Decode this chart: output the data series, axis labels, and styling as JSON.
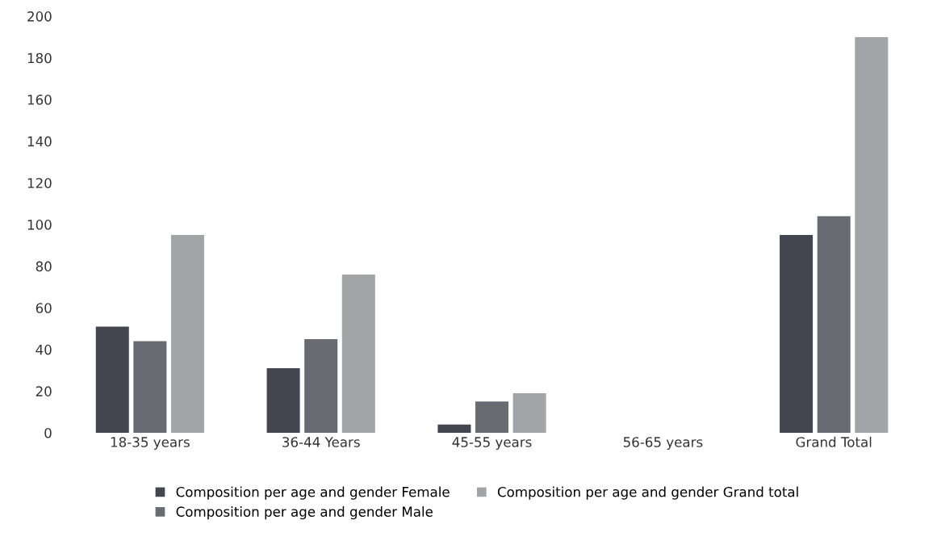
{
  "chart_data": {
    "type": "bar",
    "categories": [
      "18-35 years",
      "36-44 Years",
      "45-55 years",
      "56-65 years",
      "Grand Total"
    ],
    "series": [
      {
        "name": "Composition per age and gender Female",
        "color": "#45454f",
        "values": [
          51,
          31,
          4,
          null,
          95
        ]
      },
      {
        "name": "Composition per age and gender Male",
        "color": "#6a6a72",
        "values": [
          44,
          45,
          15,
          null,
          104
        ]
      },
      {
        "name": "Composition per age and gender Grand total",
        "color": "#a3a4a8",
        "values": [
          95,
          76,
          19,
          null,
          190
        ]
      }
    ],
    "ylim": [
      0,
      200
    ],
    "yticks": [
      0,
      20,
      40,
      60,
      80,
      100,
      120,
      140,
      160,
      180,
      200
    ],
    "grid": false,
    "legend": "bottom"
  }
}
